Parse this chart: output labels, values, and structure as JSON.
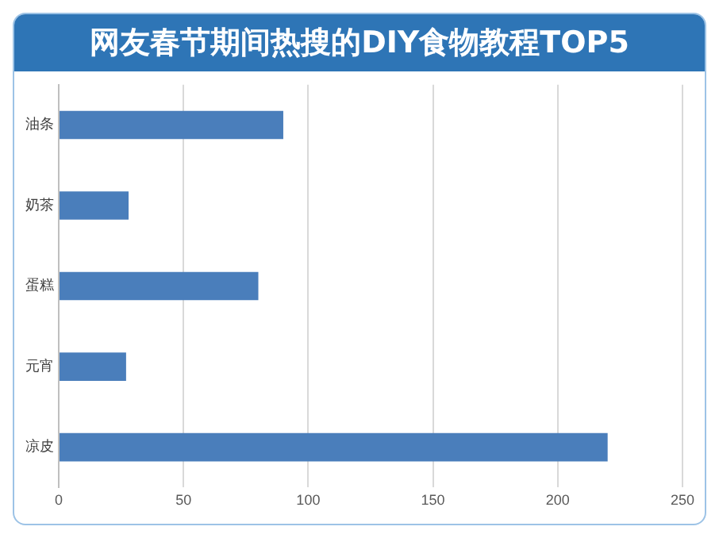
{
  "chart_data": {
    "type": "bar",
    "title": "网友春节期间热搜的DIY食物教程TOP5",
    "orientation": "horizontal",
    "categories": [
      "油条",
      "奶茶",
      "蛋糕",
      "元宵",
      "凉皮"
    ],
    "values": [
      90,
      28,
      80,
      27,
      220
    ],
    "color": "#4a7ebb",
    "xlim": [
      0,
      250
    ],
    "xticks": [
      0,
      50,
      100,
      150,
      200,
      250
    ],
    "grid": "x",
    "legend": false
  }
}
